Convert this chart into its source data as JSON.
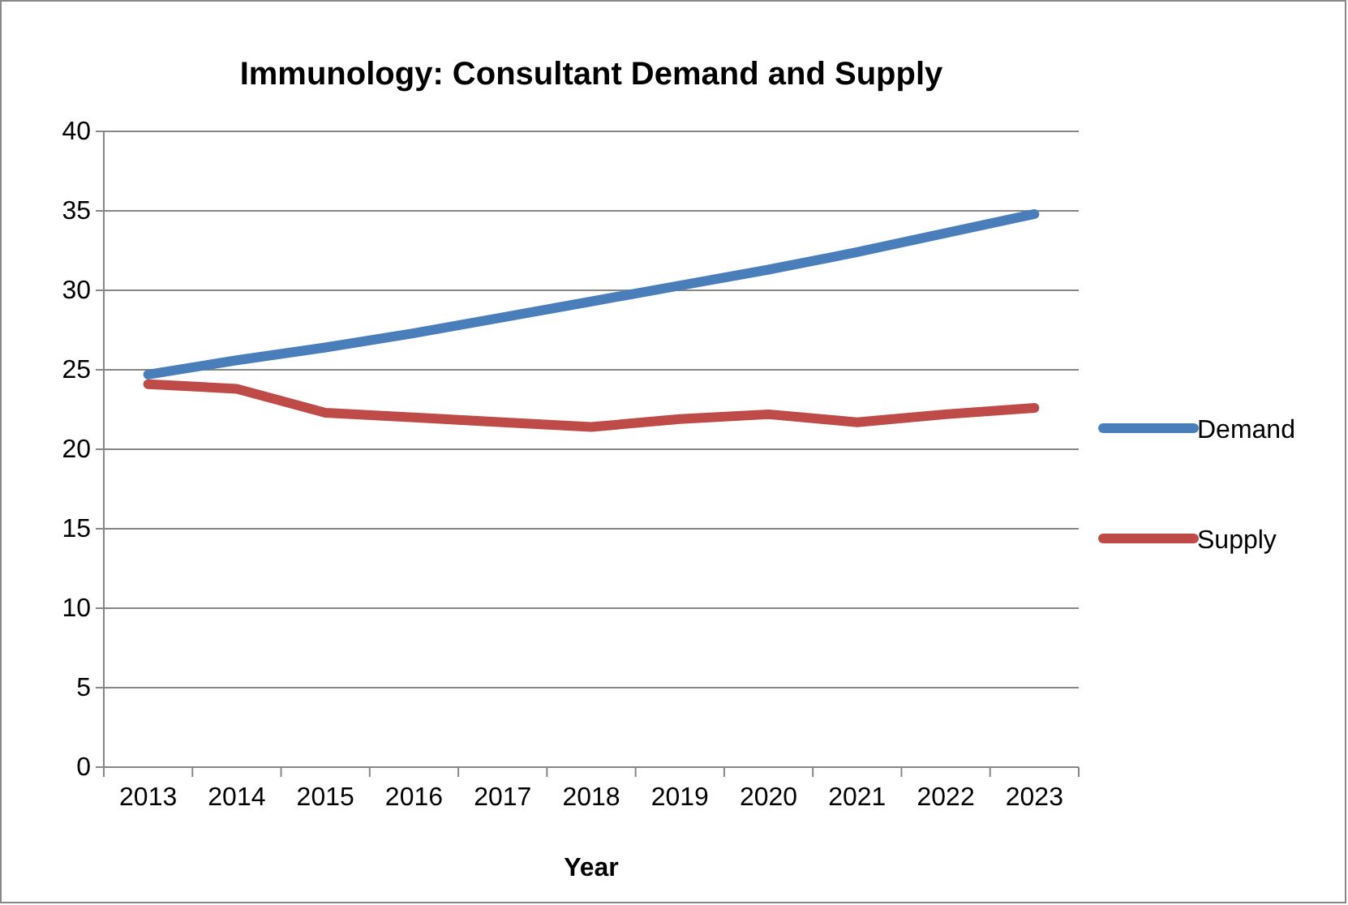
{
  "chart_data": {
    "type": "line",
    "title": "Immunology: Consultant Demand and Supply",
    "xlabel": "Year",
    "categories": [
      "2013",
      "2014",
      "2015",
      "2016",
      "2017",
      "2018",
      "2019",
      "2020",
      "2021",
      "2022",
      "2023"
    ],
    "series": [
      {
        "name": "Demand",
        "color": "#4a7ebb",
        "values": [
          24.7,
          25.6,
          26.4,
          27.3,
          28.3,
          29.3,
          30.3,
          31.3,
          32.4,
          33.6,
          34.8
        ]
      },
      {
        "name": "Supply",
        "color": "#be4b48",
        "values": [
          24.1,
          23.8,
          22.3,
          22.0,
          21.7,
          21.4,
          21.9,
          22.2,
          21.7,
          22.2,
          22.6
        ]
      }
    ],
    "ylim": [
      0,
      40
    ],
    "yticks": [
      0,
      5,
      10,
      15,
      20,
      25,
      30,
      35,
      40
    ],
    "grid": "y",
    "legend": "right",
    "marker": "none",
    "line_style": "solid"
  }
}
